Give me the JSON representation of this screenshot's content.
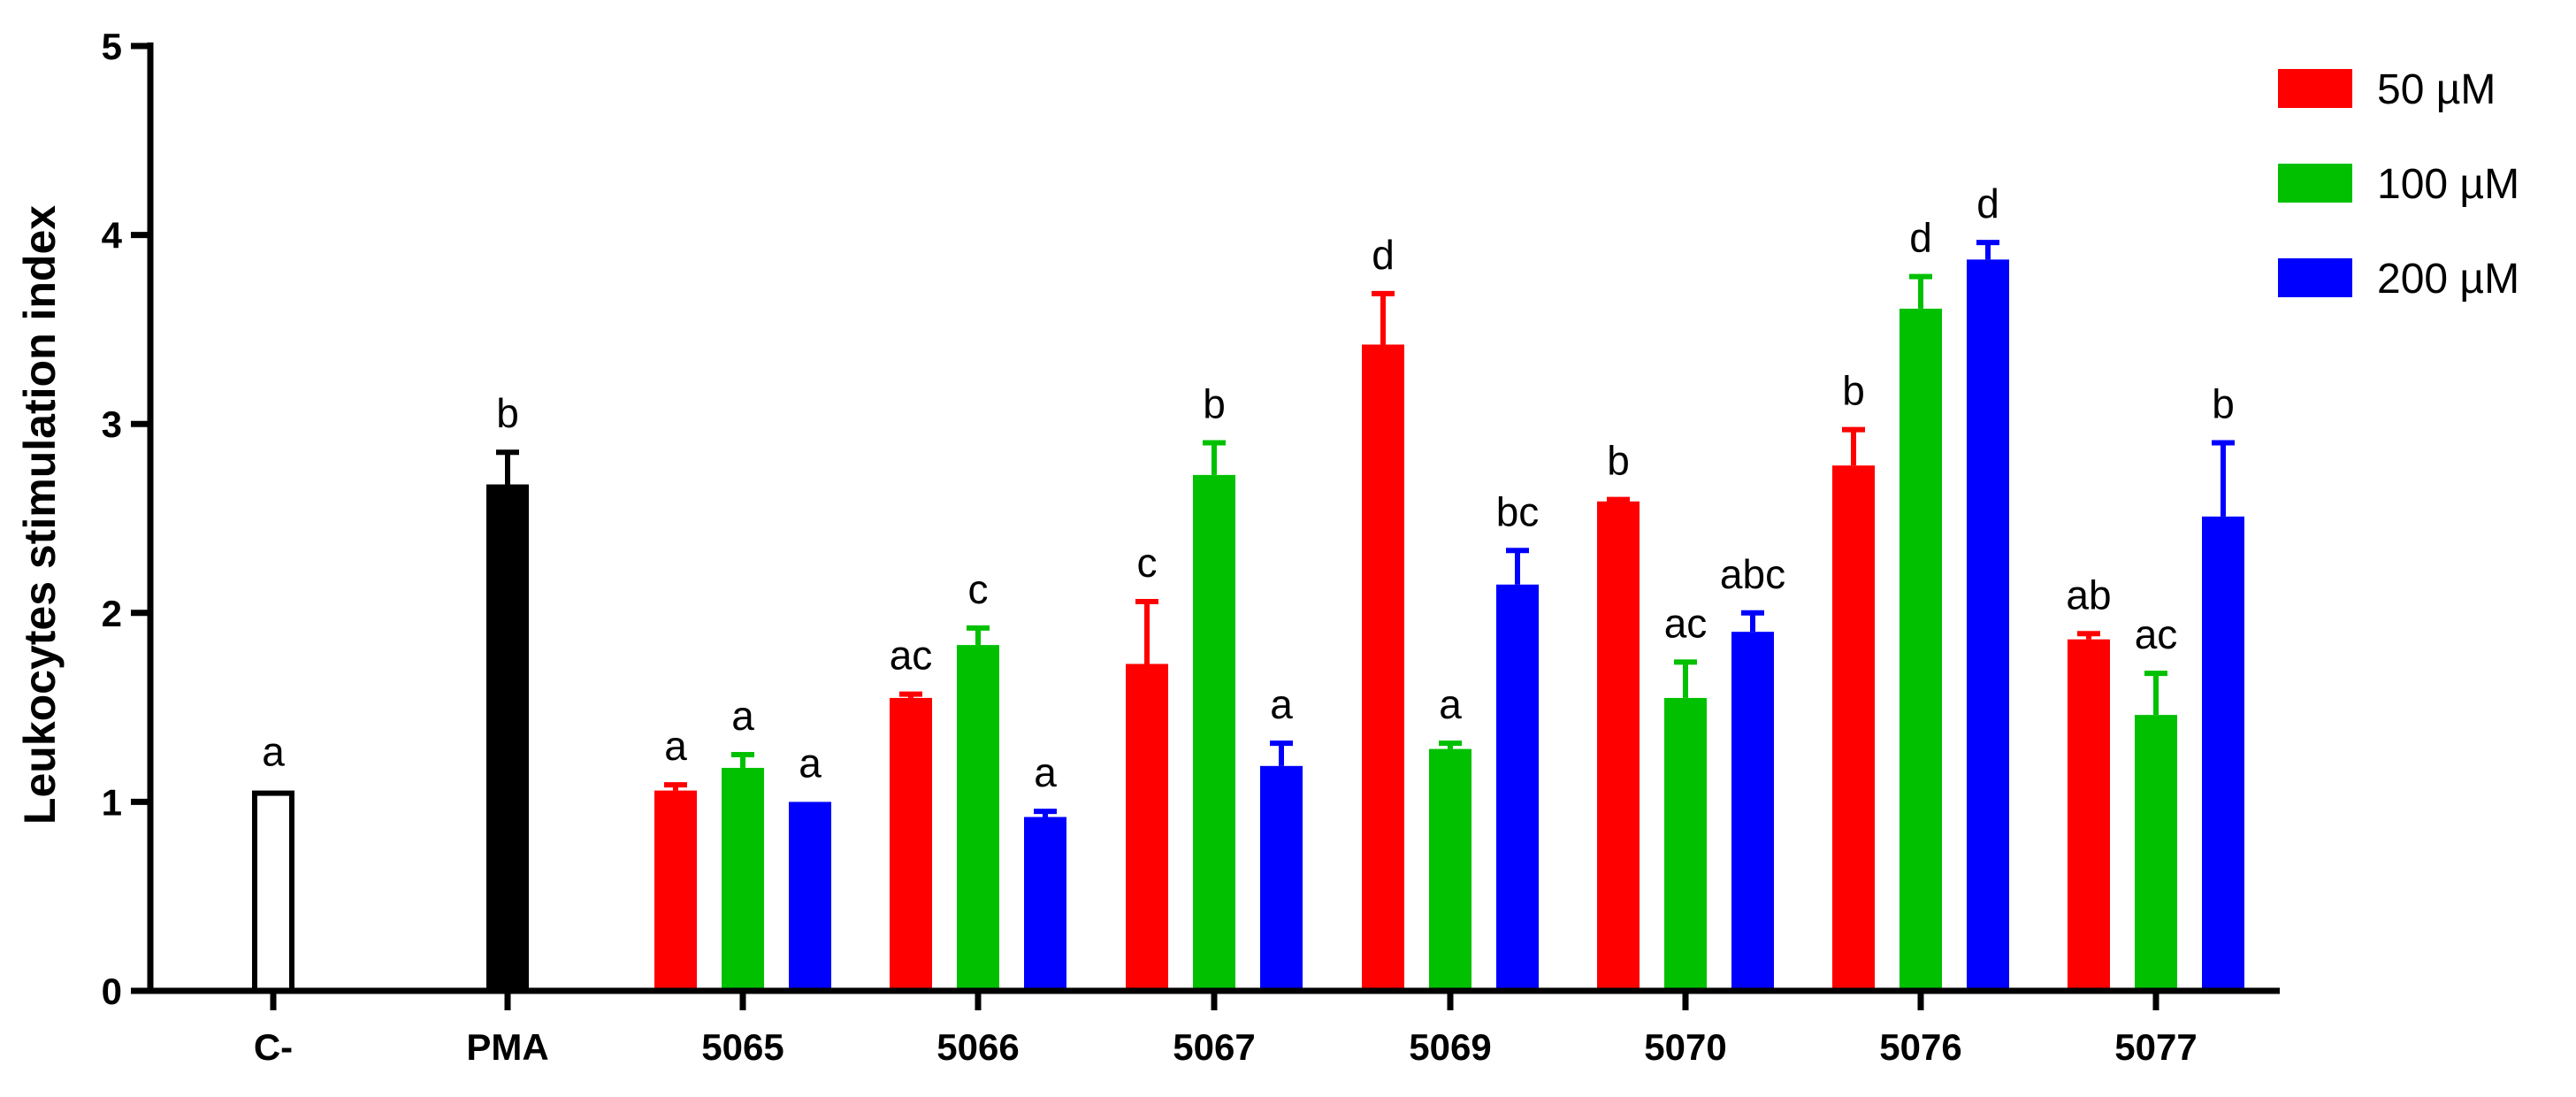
{
  "chart_data": {
    "type": "bar",
    "title": "",
    "xlabel": "",
    "ylabel": "Leukocytes stimulation index",
    "ylim": [
      0,
      5
    ],
    "yticks": [
      "0",
      "1",
      "2",
      "3",
      "4",
      "5"
    ],
    "grid": false,
    "legend": {
      "placement": "top-right",
      "entries": [
        {
          "label": "50 µM",
          "color": "#ff0000"
        },
        {
          "label": "100 µM",
          "color": "#00c000"
        },
        {
          "label": "200 µM",
          "color": "#0000ff"
        }
      ]
    },
    "groups": [
      {
        "category": "C-",
        "bars": [
          {
            "series": "control",
            "value": 1.06,
            "error": 0,
            "sig": "a",
            "color": "#ffffff",
            "outline": "#000000"
          }
        ]
      },
      {
        "category": "PMA",
        "bars": [
          {
            "series": "control",
            "value": 2.68,
            "error": 0.17,
            "sig": "b",
            "color": "#000000",
            "outline": "#000000"
          }
        ]
      },
      {
        "category": "5065",
        "bars": [
          {
            "series": "50 µM",
            "value": 1.06,
            "error": 0.03,
            "sig": "a",
            "color": "#ff0000"
          },
          {
            "series": "100 µM",
            "value": 1.18,
            "error": 0.07,
            "sig": "a",
            "color": "#00c000"
          },
          {
            "series": "200 µM",
            "value": 1.0,
            "error": 0,
            "sig": "a",
            "color": "#0000ff"
          }
        ]
      },
      {
        "category": "5066",
        "bars": [
          {
            "series": "50 µM",
            "value": 1.55,
            "error": 0.02,
            "sig": "ac",
            "color": "#ff0000"
          },
          {
            "series": "100 µM",
            "value": 1.83,
            "error": 0.09,
            "sig": "c",
            "color": "#00c000"
          },
          {
            "series": "200 µM",
            "value": 0.92,
            "error": 0.03,
            "sig": "a",
            "color": "#0000ff"
          }
        ]
      },
      {
        "category": "5067",
        "bars": [
          {
            "series": "50 µM",
            "value": 1.73,
            "error": 0.33,
            "sig": "c",
            "color": "#ff0000"
          },
          {
            "series": "100 µM",
            "value": 2.73,
            "error": 0.17,
            "sig": "b",
            "color": "#00c000"
          },
          {
            "series": "200 µM",
            "value": 1.19,
            "error": 0.12,
            "sig": "a",
            "color": "#0000ff"
          }
        ]
      },
      {
        "category": "5069",
        "bars": [
          {
            "series": "50 µM",
            "value": 3.42,
            "error": 0.27,
            "sig": "d",
            "color": "#ff0000"
          },
          {
            "series": "100 µM",
            "value": 1.28,
            "error": 0.03,
            "sig": "a",
            "color": "#00c000"
          },
          {
            "series": "200 µM",
            "value": 2.15,
            "error": 0.18,
            "sig": "bc",
            "color": "#0000ff"
          }
        ]
      },
      {
        "category": "5070",
        "bars": [
          {
            "series": "50 µM",
            "value": 2.59,
            "error": 0.01,
            "sig": "b",
            "color": "#ff0000"
          },
          {
            "series": "100 µM",
            "value": 1.55,
            "error": 0.19,
            "sig": "ac",
            "color": "#00c000"
          },
          {
            "series": "200 µM",
            "value": 1.9,
            "error": 0.1,
            "sig": "abc",
            "color": "#0000ff"
          }
        ]
      },
      {
        "category": "5076",
        "bars": [
          {
            "series": "50 µM",
            "value": 2.78,
            "error": 0.19,
            "sig": "b",
            "color": "#ff0000"
          },
          {
            "series": "100 µM",
            "value": 3.61,
            "error": 0.17,
            "sig": "d",
            "color": "#00c000"
          },
          {
            "series": "200 µM",
            "value": 3.87,
            "error": 0.09,
            "sig": "d",
            "color": "#0000ff"
          }
        ]
      },
      {
        "category": "5077",
        "bars": [
          {
            "series": "50 µM",
            "value": 1.86,
            "error": 0.03,
            "sig": "ab",
            "color": "#ff0000"
          },
          {
            "series": "100 µM",
            "value": 1.46,
            "error": 0.22,
            "sig": "ac",
            "color": "#00c000"
          },
          {
            "series": "200 µM",
            "value": 2.51,
            "error": 0.39,
            "sig": "b",
            "color": "#0000ff"
          }
        ]
      }
    ]
  }
}
